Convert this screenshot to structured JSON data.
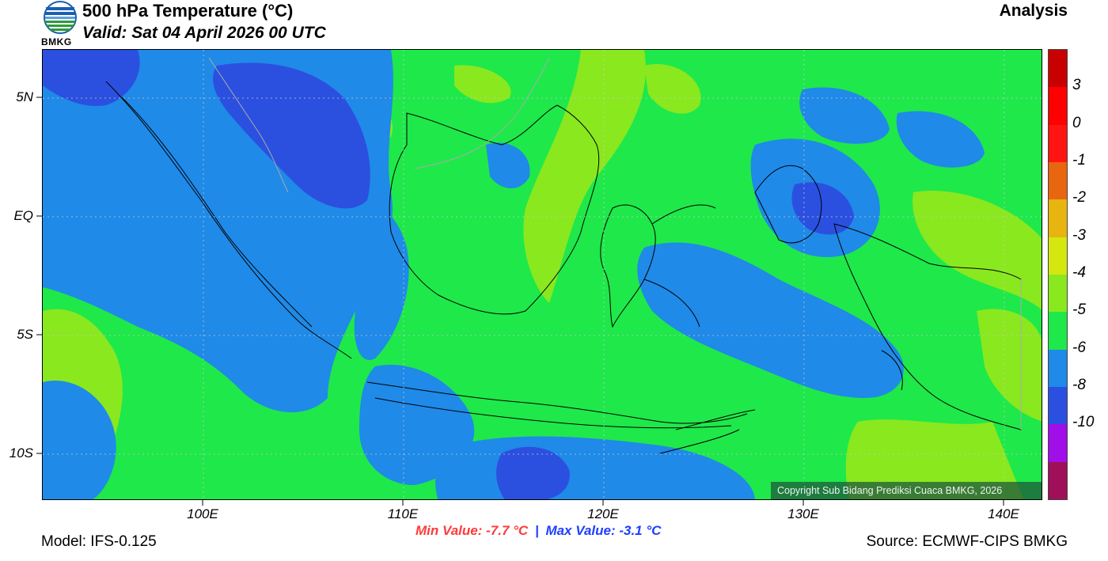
{
  "header": {
    "title": "500 hPa Temperature (°C)",
    "valid": "Valid: Sat 04 April 2026 00 UTC",
    "mode": "Analysis",
    "logo_text": "BMKG"
  },
  "map": {
    "lat_labels": [
      "5N",
      "EQ",
      "5S",
      "10S"
    ],
    "lon_labels": [
      "100E",
      "110E",
      "120E",
      "130E",
      "140E"
    ],
    "copyright": "Copyright Sub Bidang Prediksi Cuaca BMKG, 2026",
    "colors": {
      "base": "#1fe84a",
      "cool": "#1f8ae8",
      "cold": "#2b50e0",
      "warm": "#8ae81f",
      "coast": "#000000"
    }
  },
  "colorbar": {
    "levels": [
      "3",
      "0",
      "-1",
      "-2",
      "-3",
      "-4",
      "-5",
      "-6",
      "-8",
      "-10"
    ],
    "colors": [
      "#c80000",
      "#ff0000",
      "#ff1414",
      "#e8660f",
      "#e8b40f",
      "#d4e80f",
      "#8ae81f",
      "#1fe84a",
      "#1f8ae8",
      "#2b50e0",
      "#a00fe8",
      "#a0105a"
    ]
  },
  "footer": {
    "min_value": "Min Value: -7.7 °C",
    "separator": "|",
    "max_value": "Max Value: -3.1 °C",
    "model": "Model: IFS-0.125",
    "source": "Source: ECMWF-CIPS BMKG"
  }
}
